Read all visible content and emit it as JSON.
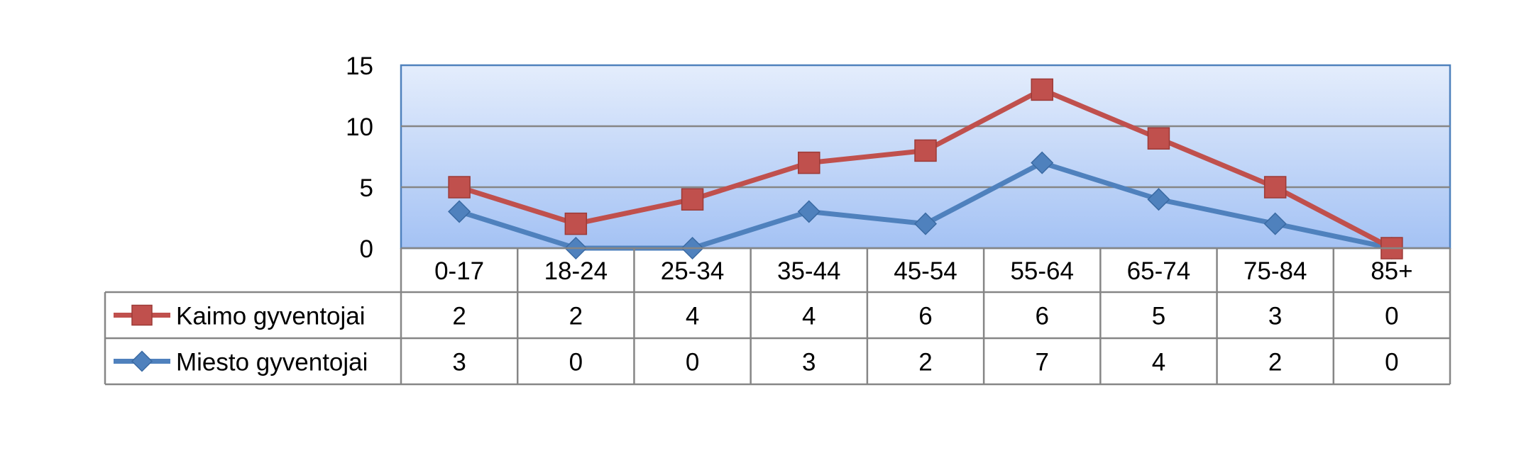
{
  "chart_data": {
    "type": "line",
    "categories": [
      "0-17",
      "18-24",
      "25-34",
      "35-44",
      "45-54",
      "55-64",
      "65-74",
      "75-84",
      "85+"
    ],
    "series": [
      {
        "name": "Kaimo gyventojai",
        "color": "#C0504D",
        "marker": "square",
        "plotted": [
          5,
          2,
          4,
          7,
          8,
          13,
          9,
          5,
          0
        ],
        "table_values": [
          "2",
          "2",
          "4",
          "4",
          "6",
          "6",
          "5",
          "3",
          "0"
        ]
      },
      {
        "name": "Miesto gyventojai",
        "color": "#4F81BD",
        "marker": "diamond",
        "plotted": [
          3,
          0,
          0,
          3,
          2,
          7,
          4,
          2,
          0
        ],
        "table_values": [
          "3",
          "0",
          "0",
          "3",
          "2",
          "7",
          "4",
          "2",
          "0"
        ]
      }
    ],
    "ylim": [
      0,
      15
    ],
    "y_ticks": [
      "0",
      "5",
      "10",
      "15"
    ],
    "grid": true,
    "legend": "data-table",
    "stacked": true
  }
}
